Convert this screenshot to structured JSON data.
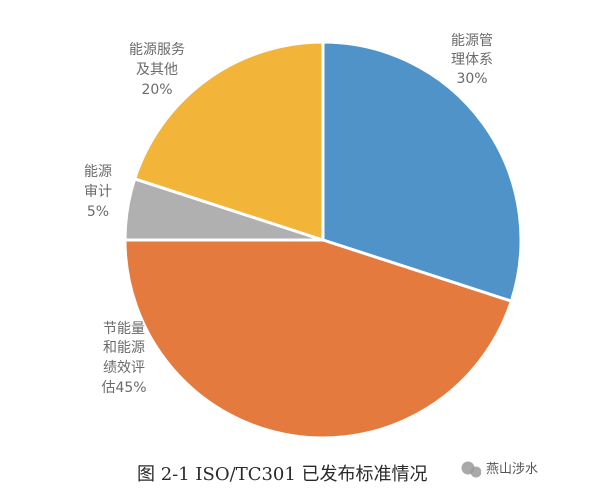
{
  "chart_data": {
    "type": "pie",
    "title": "",
    "slices": [
      {
        "label_lines": [
          "能源管",
          "理体系"
        ],
        "value": 30,
        "value_label": "30%",
        "color": "#4f93c9"
      },
      {
        "label_lines": [
          "节能量",
          "和能源",
          "绩效评"
        ],
        "value_prefix": "估",
        "value": 45,
        "value_label": "45%",
        "color": "#e47a3e"
      },
      {
        "label_lines": [
          "能源",
          "审计"
        ],
        "value": 5,
        "value_label": "5%",
        "color": "#b0b0b0"
      },
      {
        "label_lines": [
          "能源服务",
          "及其他"
        ],
        "value": 20,
        "value_label": "20%",
        "color": "#f3b43a"
      }
    ],
    "start_angle_deg": 0,
    "direction": "clockwise",
    "legend": "none",
    "label_placement": "outside"
  },
  "caption": "图 2-1 ISO/TC301 已发布标准情况",
  "watermark": {
    "text": "燕山涉水"
  }
}
